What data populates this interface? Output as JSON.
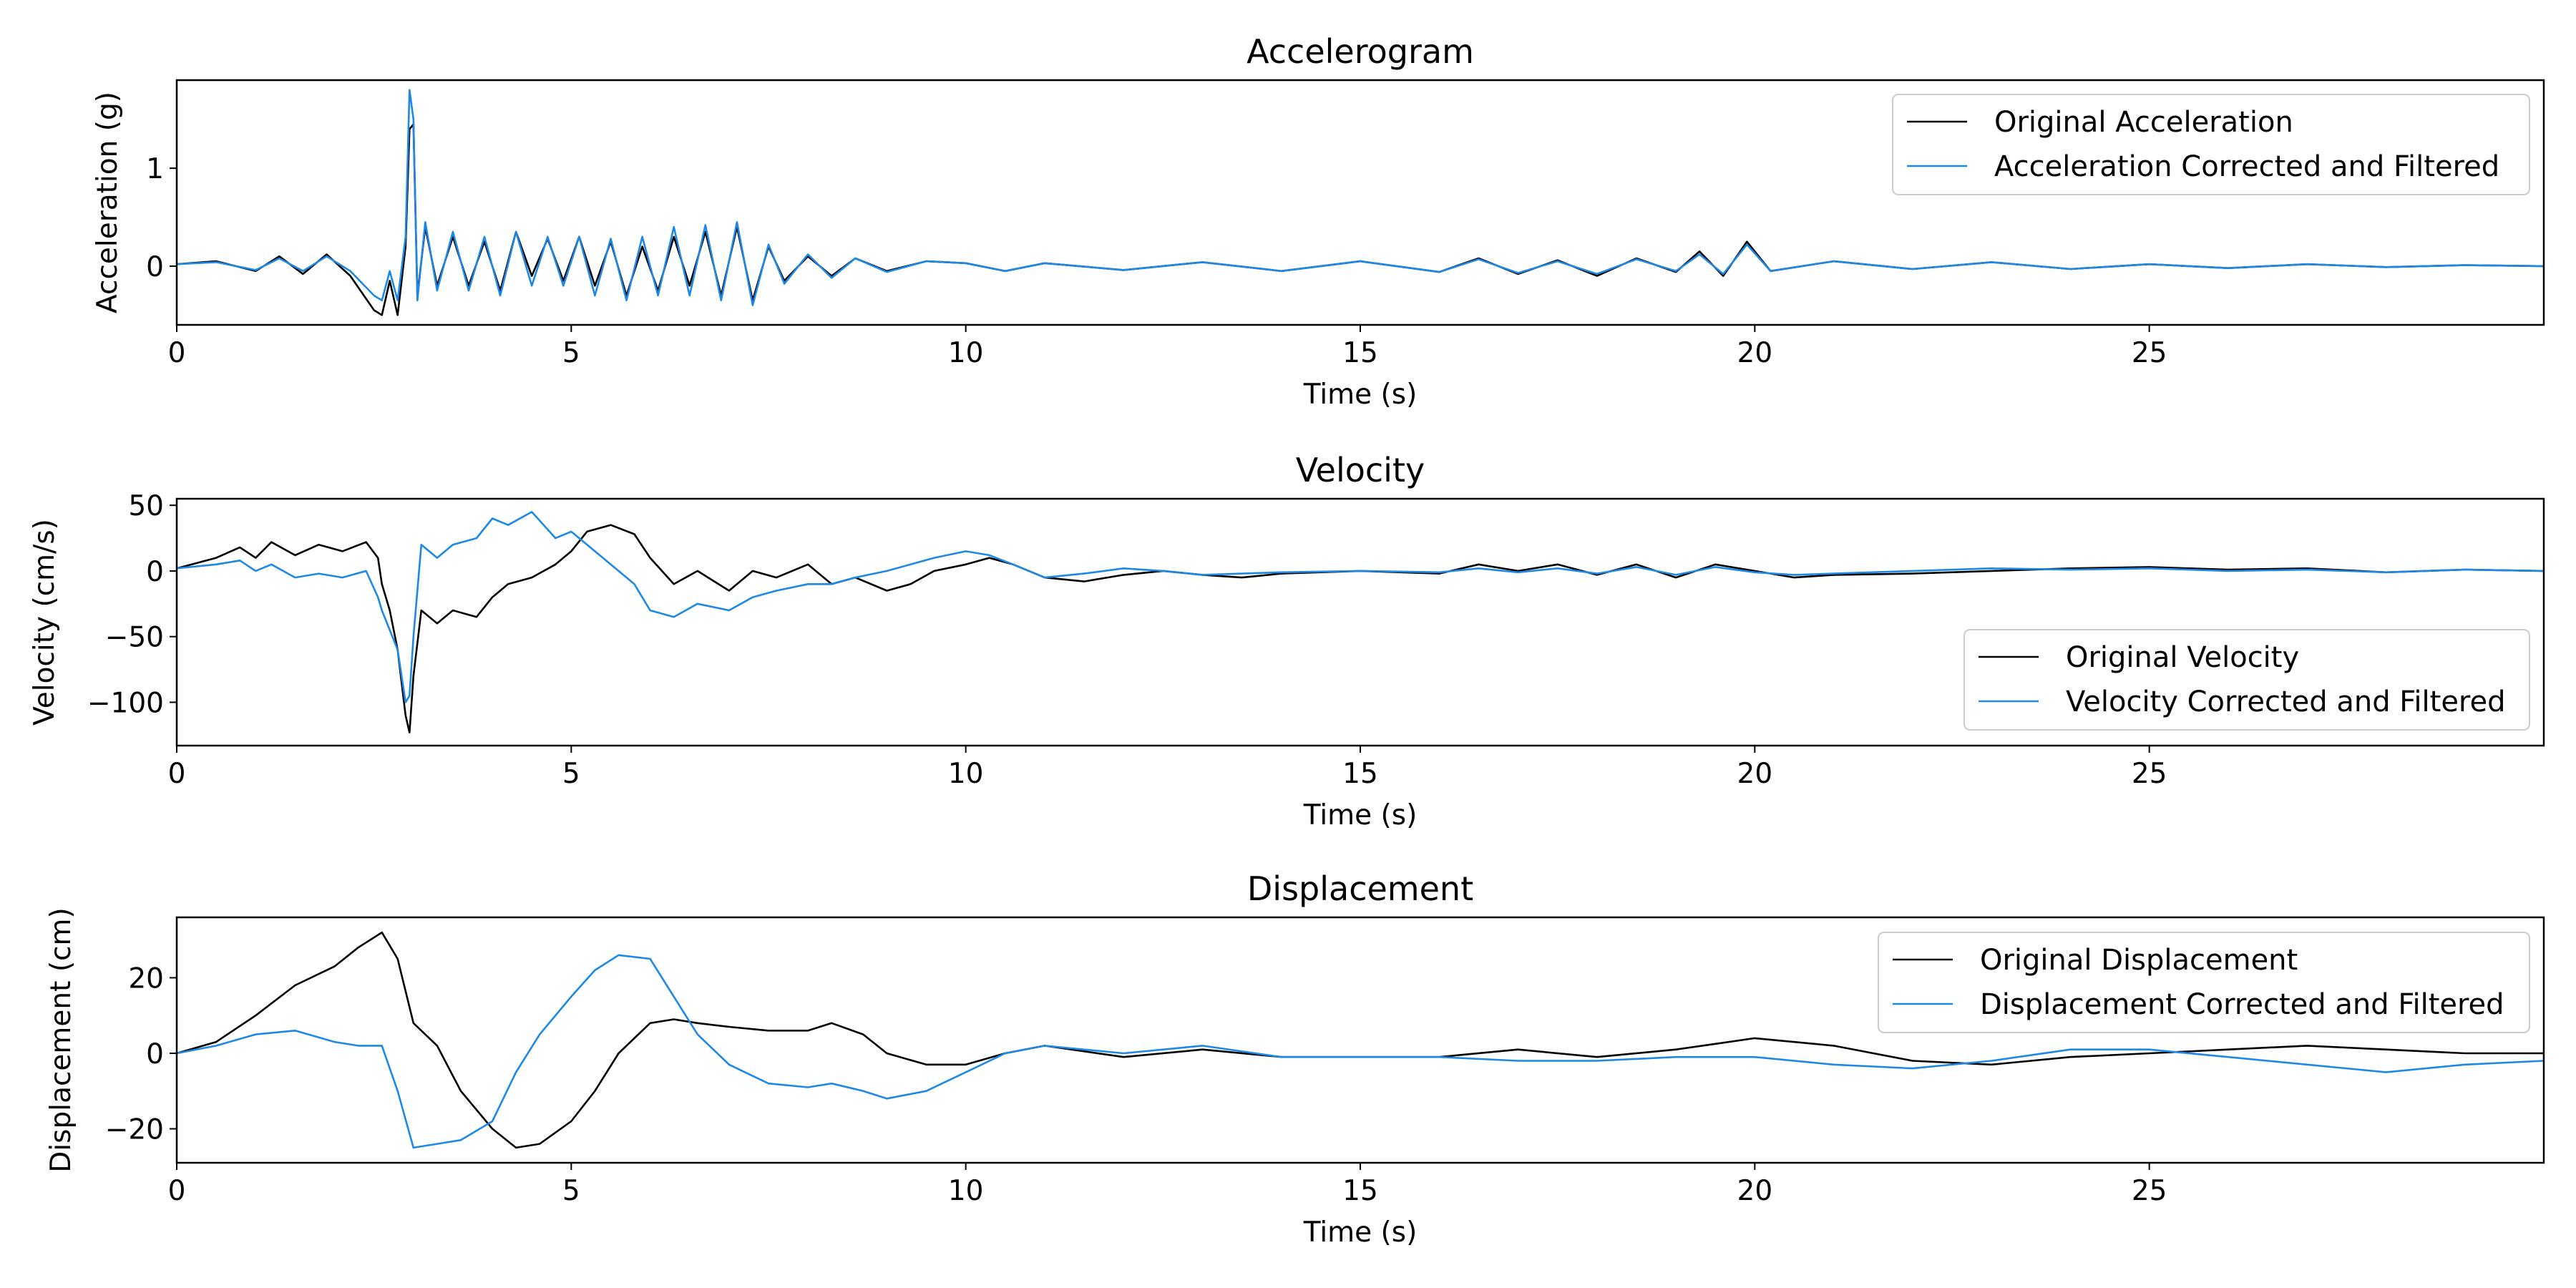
{
  "colors": {
    "original": "#000000",
    "corrected": "#1e88e5"
  },
  "chart_data": [
    {
      "type": "line",
      "title": "Accelerogram",
      "xlabel": "Time (s)",
      "ylabel": "Acceleration (g)",
      "xlim": [
        0,
        30
      ],
      "ylim": [
        -0.6,
        1.9
      ],
      "xticks": [
        0,
        5,
        10,
        15,
        20,
        25
      ],
      "yticks": [
        0,
        1
      ],
      "legend": "top-right",
      "series": [
        {
          "name": "Original Acceleration",
          "color_key": "original",
          "x": [
            0,
            0.5,
            1,
            1.3,
            1.6,
            1.9,
            2.2,
            2.5,
            2.6,
            2.7,
            2.8,
            2.9,
            2.95,
            3.0,
            3.05,
            3.15,
            3.3,
            3.5,
            3.7,
            3.9,
            4.1,
            4.3,
            4.5,
            4.7,
            4.9,
            5.1,
            5.3,
            5.5,
            5.7,
            5.9,
            6.1,
            6.3,
            6.5,
            6.7,
            6.9,
            7.1,
            7.3,
            7.5,
            7.7,
            8.0,
            8.3,
            8.6,
            9.0,
            9.5,
            10,
            10.5,
            11,
            12,
            13,
            14,
            15,
            16,
            16.5,
            17,
            17.5,
            18,
            18.5,
            19,
            19.3,
            19.6,
            19.9,
            20.2,
            21,
            22,
            23,
            24,
            25,
            26,
            27,
            28,
            29,
            30
          ],
          "values": [
            0.02,
            0.05,
            -0.05,
            0.1,
            -0.08,
            0.12,
            -0.1,
            -0.45,
            -0.5,
            -0.15,
            -0.5,
            0.2,
            1.4,
            1.45,
            -0.3,
            0.4,
            -0.2,
            0.3,
            -0.2,
            0.25,
            -0.25,
            0.35,
            -0.1,
            0.28,
            -0.15,
            0.3,
            -0.2,
            0.25,
            -0.3,
            0.2,
            -0.25,
            0.3,
            -0.2,
            0.35,
            -0.3,
            0.4,
            -0.35,
            0.2,
            -0.15,
            0.1,
            -0.1,
            0.08,
            -0.05,
            0.05,
            0.03,
            -0.05,
            0.03,
            -0.04,
            0.04,
            -0.05,
            0.05,
            -0.06,
            0.08,
            -0.08,
            0.06,
            -0.1,
            0.08,
            -0.06,
            0.15,
            -0.1,
            0.25,
            -0.05,
            0.05,
            -0.03,
            0.04,
            -0.03,
            0.02,
            -0.02,
            0.02,
            -0.01,
            0.01,
            0.0
          ]
        },
        {
          "name": "Acceleration Corrected and Filtered",
          "color_key": "corrected",
          "x": [
            0,
            0.5,
            1,
            1.3,
            1.6,
            1.9,
            2.2,
            2.5,
            2.6,
            2.7,
            2.8,
            2.9,
            2.95,
            3.0,
            3.05,
            3.15,
            3.3,
            3.5,
            3.7,
            3.9,
            4.1,
            4.3,
            4.5,
            4.7,
            4.9,
            5.1,
            5.3,
            5.5,
            5.7,
            5.9,
            6.1,
            6.3,
            6.5,
            6.7,
            6.9,
            7.1,
            7.3,
            7.5,
            7.7,
            8.0,
            8.3,
            8.6,
            9.0,
            9.5,
            10,
            10.5,
            11,
            12,
            13,
            14,
            15,
            16,
            16.5,
            17,
            17.5,
            18,
            18.5,
            19,
            19.3,
            19.6,
            19.9,
            20.2,
            21,
            22,
            23,
            24,
            25,
            26,
            27,
            28,
            29,
            30
          ],
          "values": [
            0.02,
            0.04,
            -0.04,
            0.08,
            -0.05,
            0.1,
            -0.05,
            -0.3,
            -0.35,
            -0.05,
            -0.35,
            0.3,
            1.8,
            1.5,
            -0.35,
            0.45,
            -0.25,
            0.35,
            -0.25,
            0.3,
            -0.3,
            0.35,
            -0.2,
            0.3,
            -0.2,
            0.3,
            -0.3,
            0.28,
            -0.35,
            0.3,
            -0.3,
            0.4,
            -0.3,
            0.42,
            -0.35,
            0.45,
            -0.4,
            0.22,
            -0.18,
            0.12,
            -0.12,
            0.08,
            -0.06,
            0.05,
            0.03,
            -0.05,
            0.03,
            -0.04,
            0.04,
            -0.05,
            0.05,
            -0.06,
            0.07,
            -0.07,
            0.05,
            -0.08,
            0.07,
            -0.05,
            0.12,
            -0.08,
            0.22,
            -0.05,
            0.05,
            -0.03,
            0.04,
            -0.03,
            0.02,
            -0.02,
            0.02,
            -0.01,
            0.01,
            0.0
          ]
        }
      ]
    },
    {
      "type": "line",
      "title": "Velocity",
      "xlabel": "Time (s)",
      "ylabel": "Velocity (cm/s)",
      "xlim": [
        0,
        30
      ],
      "ylim": [
        -133,
        55
      ],
      "xticks": [
        0,
        5,
        10,
        15,
        20,
        25
      ],
      "yticks": [
        50,
        0,
        -50,
        -100
      ],
      "legend": "bottom-right",
      "series": [
        {
          "name": "Original Velocity",
          "color_key": "original",
          "x": [
            0,
            0.5,
            0.8,
            1.0,
            1.2,
            1.5,
            1.8,
            2.1,
            2.4,
            2.55,
            2.6,
            2.7,
            2.8,
            2.9,
            2.95,
            3.0,
            3.1,
            3.3,
            3.5,
            3.8,
            4.0,
            4.2,
            4.5,
            4.8,
            5.0,
            5.2,
            5.5,
            5.8,
            6.0,
            6.3,
            6.6,
            7.0,
            7.3,
            7.6,
            8.0,
            8.3,
            8.6,
            9.0,
            9.3,
            9.6,
            10.0,
            10.3,
            10.6,
            11,
            11.5,
            12,
            12.5,
            13,
            13.5,
            14,
            15,
            16,
            16.5,
            17,
            17.5,
            18,
            18.5,
            19,
            19.5,
            20,
            20.5,
            21,
            22,
            23,
            24,
            25,
            26,
            27,
            28,
            29,
            30
          ],
          "values": [
            2,
            10,
            18,
            10,
            22,
            12,
            20,
            15,
            22,
            10,
            -10,
            -30,
            -60,
            -110,
            -123,
            -80,
            -30,
            -40,
            -30,
            -35,
            -20,
            -10,
            -5,
            5,
            15,
            30,
            35,
            28,
            10,
            -10,
            0,
            -15,
            0,
            -5,
            5,
            -10,
            -5,
            -15,
            -10,
            0,
            5,
            10,
            5,
            -5,
            -8,
            -3,
            0,
            -3,
            -5,
            -2,
            0,
            -2,
            5,
            0,
            5,
            -3,
            5,
            -5,
            5,
            0,
            -5,
            -3,
            -2,
            0,
            2,
            3,
            1,
            2,
            -1,
            1,
            0
          ]
        },
        {
          "name": "Velocity Corrected and Filtered",
          "color_key": "corrected",
          "x": [
            0,
            0.5,
            0.8,
            1.0,
            1.2,
            1.5,
            1.8,
            2.1,
            2.4,
            2.55,
            2.6,
            2.7,
            2.8,
            2.9,
            2.95,
            3.0,
            3.1,
            3.3,
            3.5,
            3.8,
            4.0,
            4.2,
            4.5,
            4.8,
            5.0,
            5.2,
            5.5,
            5.8,
            6.0,
            6.3,
            6.6,
            7.0,
            7.3,
            7.6,
            8.0,
            8.3,
            8.6,
            9.0,
            9.3,
            9.6,
            10.0,
            10.3,
            10.6,
            11,
            11.5,
            12,
            12.5,
            13,
            13.5,
            14,
            15,
            16,
            16.5,
            17,
            17.5,
            18,
            18.5,
            19,
            19.5,
            20,
            20.5,
            21,
            22,
            23,
            24,
            25,
            26,
            27,
            28,
            29,
            30
          ],
          "values": [
            2,
            5,
            8,
            0,
            5,
            -5,
            -2,
            -5,
            0,
            -20,
            -30,
            -45,
            -60,
            -100,
            -95,
            -50,
            20,
            10,
            20,
            25,
            40,
            35,
            45,
            25,
            30,
            20,
            5,
            -10,
            -30,
            -35,
            -25,
            -30,
            -20,
            -15,
            -10,
            -10,
            -5,
            0,
            5,
            10,
            15,
            12,
            5,
            -5,
            -2,
            2,
            0,
            -3,
            -2,
            -1,
            0,
            -1,
            2,
            -1,
            2,
            -2,
            3,
            -3,
            3,
            -1,
            -3,
            -2,
            0,
            2,
            1,
            2,
            0,
            1,
            -1,
            1,
            0
          ]
        }
      ]
    },
    {
      "type": "line",
      "title": "Displacement",
      "xlabel": "Time (s)",
      "ylabel": "Displacement (cm)",
      "xlim": [
        0,
        30
      ],
      "ylim": [
        -29,
        36
      ],
      "xticks": [
        0,
        5,
        10,
        15,
        20,
        25
      ],
      "yticks": [
        20,
        0,
        -20
      ],
      "legend": "top-right",
      "series": [
        {
          "name": "Original Displacement",
          "color_key": "original",
          "x": [
            0,
            0.5,
            1.0,
            1.5,
            2.0,
            2.3,
            2.6,
            2.8,
            3.0,
            3.3,
            3.6,
            4.0,
            4.3,
            4.6,
            5.0,
            5.3,
            5.6,
            6.0,
            6.3,
            6.6,
            7.0,
            7.5,
            8.0,
            8.3,
            8.7,
            9.0,
            9.5,
            10.0,
            10.5,
            11,
            12,
            13,
            14,
            15,
            16,
            17,
            18,
            19,
            20,
            21,
            22,
            23,
            24,
            25,
            26,
            27,
            28,
            29,
            30
          ],
          "values": [
            0,
            3,
            10,
            18,
            23,
            28,
            32,
            25,
            8,
            2,
            -10,
            -20,
            -25,
            -24,
            -18,
            -10,
            0,
            8,
            9,
            8,
            7,
            6,
            6,
            8,
            5,
            0,
            -3,
            -3,
            0,
            2,
            -1,
            1,
            -1,
            -1,
            -1,
            1,
            -1,
            1,
            4,
            2,
            -2,
            -3,
            -1,
            0,
            1,
            2,
            1,
            0,
            0
          ]
        },
        {
          "name": "Displacement Corrected and Filtered",
          "color_key": "corrected",
          "x": [
            0,
            0.5,
            1.0,
            1.5,
            2.0,
            2.3,
            2.6,
            2.8,
            3.0,
            3.3,
            3.6,
            4.0,
            4.3,
            4.6,
            5.0,
            5.3,
            5.6,
            6.0,
            6.3,
            6.6,
            7.0,
            7.5,
            8.0,
            8.3,
            8.7,
            9.0,
            9.5,
            10.0,
            10.5,
            11,
            12,
            13,
            14,
            15,
            16,
            17,
            18,
            19,
            20,
            21,
            22,
            23,
            24,
            25,
            26,
            27,
            28,
            29,
            30
          ],
          "values": [
            0,
            2,
            5,
            6,
            3,
            2,
            2,
            -10,
            -25,
            -24,
            -23,
            -18,
            -5,
            5,
            15,
            22,
            26,
            25,
            15,
            5,
            -3,
            -8,
            -9,
            -8,
            -10,
            -12,
            -10,
            -5,
            0,
            2,
            0,
            2,
            -1,
            -1,
            -1,
            -2,
            -2,
            -1,
            -1,
            -3,
            -4,
            -2,
            1,
            1,
            -1,
            -3,
            -5,
            -3,
            -2
          ]
        }
      ]
    }
  ]
}
